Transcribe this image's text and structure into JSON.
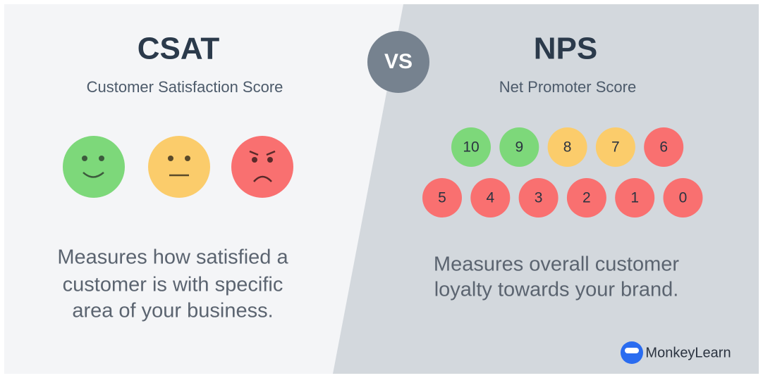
{
  "vs": "VS",
  "csat": {
    "title": "CSAT",
    "subtitle": "Customer Satisfaction Score",
    "description": [
      "Measures how satisfied a",
      "customer is with specific",
      "area of your business."
    ]
  },
  "nps": {
    "title": "NPS",
    "subtitle": "Net Promoter Score",
    "scores": [
      [
        {
          "value": 10,
          "color": "#7dd87a"
        },
        {
          "value": 9,
          "color": "#7dd87a"
        },
        {
          "value": 8,
          "color": "#fbcc6b"
        },
        {
          "value": 7,
          "color": "#fbcc6b"
        },
        {
          "value": 6,
          "color": "#f97070"
        }
      ],
      [
        {
          "value": 5,
          "color": "#f97070"
        },
        {
          "value": 4,
          "color": "#f97070"
        },
        {
          "value": 3,
          "color": "#f97070"
        },
        {
          "value": 2,
          "color": "#f97070"
        },
        {
          "value": 1,
          "color": "#f97070"
        },
        {
          "value": 0,
          "color": "#f97070"
        }
      ]
    ],
    "description": [
      "Measures overall customer",
      "loyalty towards your brand."
    ]
  },
  "brand": "MonkeyLearn"
}
